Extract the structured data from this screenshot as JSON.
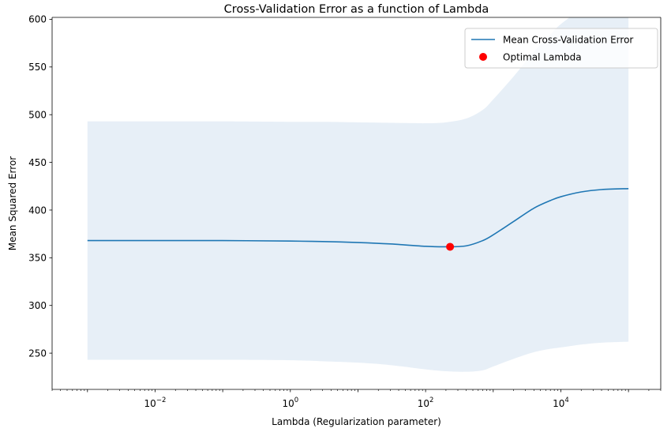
{
  "chart_data": {
    "type": "line",
    "title": "Cross-Validation Error as a function of Lambda",
    "xlabel": "Lambda (Regularization parameter)",
    "ylabel": "Mean Squared Error",
    "xscale": "log",
    "xlim": [
      0.0003,
      300000
    ],
    "ylim": [
      212,
      602
    ],
    "xticks": [
      {
        "value": 0.01,
        "base": "10",
        "exp": "−2"
      },
      {
        "value": 1,
        "base": "10",
        "exp": "0"
      },
      {
        "value": 100,
        "base": "10",
        "exp": "2"
      },
      {
        "value": 10000,
        "base": "10",
        "exp": "4"
      }
    ],
    "yticks": [
      250,
      300,
      350,
      400,
      450,
      500,
      550,
      600
    ],
    "grid": false,
    "legend_position": "top-right",
    "series": [
      {
        "name": "Mean Cross-Validation Error",
        "type": "line",
        "color": "#1f77b4",
        "x": [
          0.001,
          0.01,
          0.1,
          1,
          3,
          10,
          30,
          100,
          200,
          400,
          700,
          1000,
          2000,
          4000,
          7000,
          10000,
          20000,
          40000,
          100000
        ],
        "y": [
          368,
          368,
          368,
          367.5,
          367,
          366,
          364.5,
          362,
          361.5,
          362.5,
          368,
          374,
          388,
          402,
          410,
          414,
          419,
          421.5,
          422.5
        ]
      },
      {
        "name": "Optimal Lambda",
        "type": "scatter",
        "color": "#ff0000",
        "x": [
          230
        ],
        "y": [
          361.5
        ]
      }
    ],
    "bands": [
      {
        "color": "#e7eff7",
        "x": [
          0.001,
          0.01,
          0.1,
          1,
          3,
          10,
          30,
          100,
          200,
          400,
          700,
          1000,
          2000,
          4000,
          7000,
          10000,
          20000,
          40000,
          100000
        ],
        "upper": [
          493,
          493,
          493,
          492.5,
          492.5,
          492,
          491.5,
          491,
          492,
          496,
          505,
          516,
          540,
          566,
          584,
          595,
          610,
          620,
          625
        ],
        "lower": [
          243,
          243,
          243,
          242.5,
          241.5,
          240,
          237.5,
          233,
          231,
          230.5,
          232,
          236,
          244,
          251,
          254.5,
          256,
          259,
          261,
          262
        ]
      }
    ]
  }
}
